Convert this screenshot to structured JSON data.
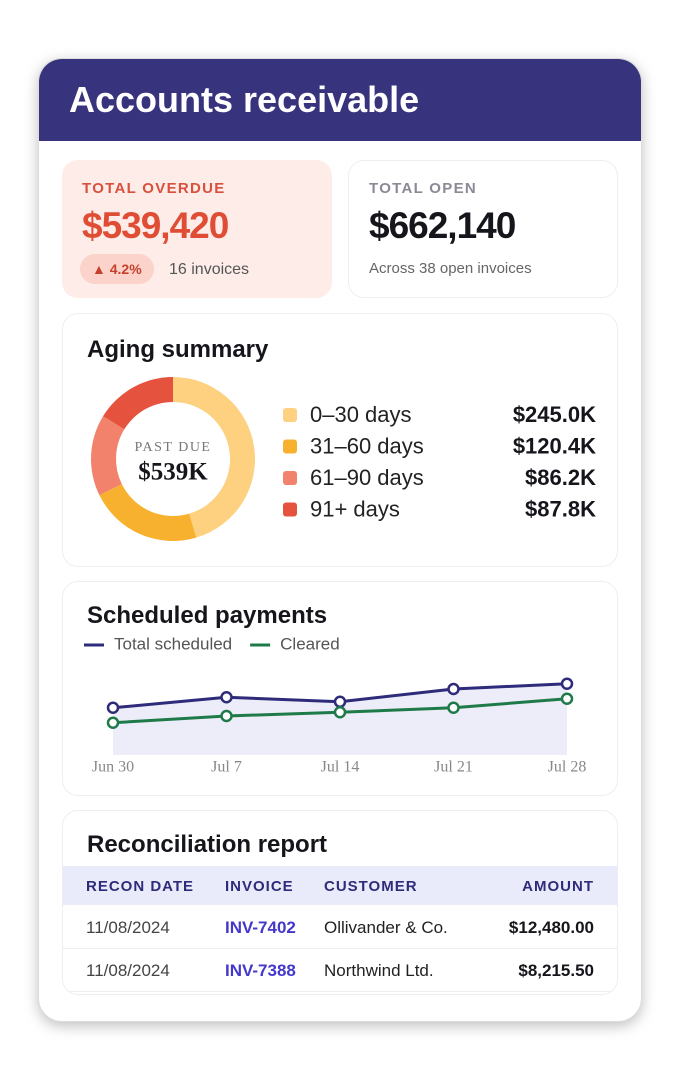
{
  "header": {
    "title": "Accounts receivable"
  },
  "kpis": {
    "overdue": {
      "label": "TOTAL OVERDUE",
      "value": "$539,420",
      "change": "▲ 4.2%",
      "note": "16 invoices"
    },
    "open": {
      "label": "TOTAL OPEN",
      "value": "$662,140",
      "note": "Across 38 open invoices"
    }
  },
  "aging": {
    "title": "Aging summary",
    "chart_data": {
      "type": "donut",
      "center_label": "PAST DUE",
      "center_value": "$539K",
      "categories": [
        "0–30 days",
        "31–60 days",
        "61–90 days",
        "91+ days"
      ],
      "values": [
        245.0,
        120.4,
        86.2,
        87.8
      ],
      "value_labels": [
        "$245.0K",
        "$120.4K",
        "$86.2K",
        "$87.8K"
      ],
      "colors": [
        "#fdd17f",
        "#f7b12f",
        "#f2826c",
        "#e5533f"
      ]
    }
  },
  "payments": {
    "title": "Scheduled payments",
    "chart_data": {
      "type": "line",
      "categories": [
        "Jun 30",
        "Jul 7",
        "Jul 14",
        "Jul 21",
        "Jul 28"
      ],
      "ylim": [
        0,
        100
      ],
      "series": [
        {
          "name": "Total scheduled",
          "color": "#2e2c7a",
          "values": [
            63,
            77,
            71,
            88,
            95
          ]
        },
        {
          "name": "Cleared",
          "color": "#1f7a4a",
          "values": [
            43,
            52,
            57,
            63,
            75
          ]
        }
      ]
    }
  },
  "recon": {
    "title": "Reconciliation report",
    "columns": [
      "RECON DATE",
      "INVOICE",
      "CUSTOMER",
      "AMOUNT"
    ],
    "rows": [
      [
        "11/08/2024",
        "INV-7402",
        "Ollivander & Co.",
        "$12,480.00"
      ],
      [
        "11/08/2024",
        "INV-7388",
        "Northwind Ltd.",
        "$8,215.50"
      ]
    ]
  }
}
